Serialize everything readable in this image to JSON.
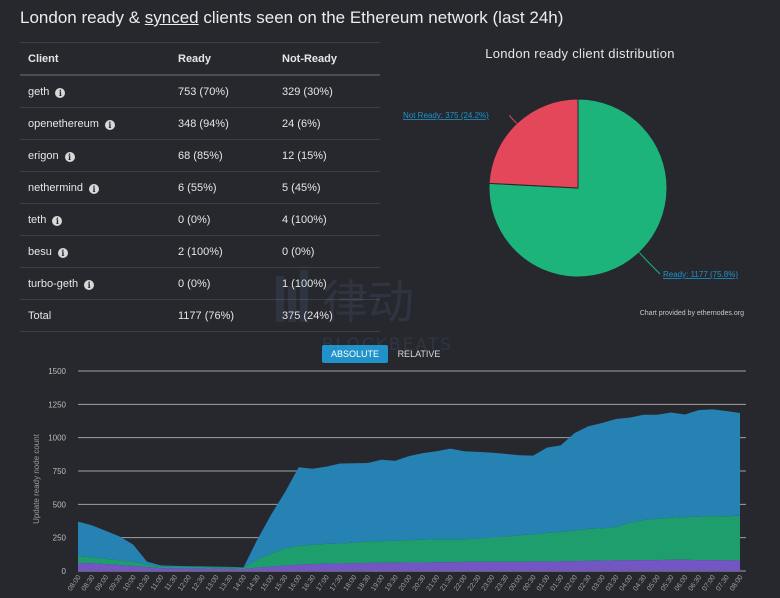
{
  "page": {
    "title_prefix": "London ready & ",
    "title_link": "synced",
    "title_suffix": " clients seen on the Ethereum network (last 24h)"
  },
  "table": {
    "headers": [
      "Client",
      "Ready",
      "Not-Ready"
    ],
    "rows": [
      {
        "client": "geth",
        "ready": "753 (70%)",
        "not_ready": "329 (30%)"
      },
      {
        "client": "openethereum",
        "ready": "348 (94%)",
        "not_ready": "24 (6%)"
      },
      {
        "client": "erigon",
        "ready": "68 (85%)",
        "not_ready": "12 (15%)"
      },
      {
        "client": "nethermind",
        "ready": "6 (55%)",
        "not_ready": "5 (45%)"
      },
      {
        "client": "teth",
        "ready": "0 (0%)",
        "not_ready": "4 (100%)"
      },
      {
        "client": "besu",
        "ready": "2 (100%)",
        "not_ready": "0 (0%)"
      },
      {
        "client": "turbo-geth",
        "ready": "0 (0%)",
        "not_ready": "1 (100%)"
      }
    ],
    "total": {
      "label": "Total",
      "ready": "1177 (76%)",
      "not_ready": "375 (24%)"
    }
  },
  "toggles": {
    "absolute": "ABSOLUTE",
    "relative": "RELATIVE"
  },
  "credit": "Chart provided by ethernodes.org",
  "watermark": {
    "brand": "BLOCKBEATS",
    "glyphs": "律动"
  },
  "colors": {
    "ready": "#1db47c",
    "not_ready": "#e5475a",
    "geth": "#2582b3",
    "openethereum": "#1e9e6c",
    "erigon": "#7356c4",
    "grid": "#c8c8c8"
  },
  "chart_data": [
    {
      "type": "pie",
      "title": "London ready client distribution",
      "slices": [
        {
          "name": "Ready",
          "value": 1177,
          "label": "Ready: 1177 (75.8%)"
        },
        {
          "name": "Not Ready",
          "value": 375,
          "label": "Not Ready: 375 (24.2%)"
        }
      ]
    },
    {
      "type": "area",
      "stacked": true,
      "ylabel": "Update ready node count",
      "ylim": [
        0,
        1500
      ],
      "yticks": [
        0,
        250,
        500,
        750,
        1000,
        1250,
        1500
      ],
      "grid": true,
      "x_tick_labels": [
        "08:00",
        "08:30",
        "09:00",
        "09:30",
        "10:00",
        "10:30",
        "11:00",
        "11:30",
        "12:00",
        "12:30",
        "13:00",
        "13:30",
        "14:00",
        "14:30",
        "15:00",
        "15:30",
        "16:00",
        "16:30",
        "17:00",
        "17:30",
        "18:00",
        "18:30",
        "19:00",
        "19:30",
        "20:00",
        "20:30",
        "21:00",
        "21:30",
        "22:00",
        "22:30",
        "23:00",
        "23:30",
        "00:00",
        "00:30",
        "01:00",
        "01:30",
        "02:00",
        "02:30",
        "03:00",
        "03:30",
        "04:00",
        "04:30",
        "05:00",
        "05:30",
        "06:00",
        "06:30",
        "07:00",
        "07:30",
        "08:00"
      ],
      "x": [
        0,
        1,
        2,
        3,
        4,
        5,
        6,
        7,
        8,
        9,
        10,
        11,
        12,
        13,
        14,
        15,
        16,
        17,
        18,
        19,
        20,
        21,
        22,
        23,
        24,
        25,
        26,
        27,
        28,
        29,
        30,
        31,
        32,
        33,
        34,
        35,
        36,
        37,
        38,
        39,
        40,
        41,
        42,
        43,
        44,
        45,
        46,
        47,
        48
      ],
      "series": [
        {
          "values": [
            60,
            58,
            52,
            45,
            38,
            30,
            22,
            20,
            20,
            20,
            18,
            18,
            14,
            25,
            32,
            40,
            48,
            52,
            55,
            56,
            58,
            60,
            62,
            62,
            64,
            64,
            66,
            66,
            68,
            68,
            68,
            68,
            68,
            70,
            70,
            72,
            74,
            76,
            78,
            80,
            80,
            82,
            82,
            84,
            84,
            82,
            82,
            80,
            80
          ]
        },
        {
          "values": [
            50,
            45,
            40,
            35,
            30,
            20,
            10,
            10,
            10,
            10,
            10,
            10,
            10,
            60,
            100,
            130,
            140,
            145,
            148,
            150,
            155,
            160,
            162,
            165,
            168,
            170,
            172,
            172,
            170,
            175,
            180,
            190,
            200,
            205,
            215,
            220,
            230,
            240,
            242,
            250,
            280,
            300,
            310,
            315,
            320,
            325,
            330,
            330,
            335
          ]
        },
        {
          "values": [
            260,
            240,
            210,
            180,
            130,
            20,
            10,
            8,
            6,
            5,
            5,
            3,
            3,
            150,
            290,
            420,
            590,
            570,
            580,
            600,
            595,
            590,
            610,
            600,
            630,
            650,
            660,
            680,
            660,
            650,
            640,
            620,
            600,
            590,
            640,
            650,
            730,
            770,
            790,
            810,
            790,
            790,
            780,
            790,
            770,
            800,
            800,
            790,
            770
          ]
        }
      ]
    }
  ]
}
